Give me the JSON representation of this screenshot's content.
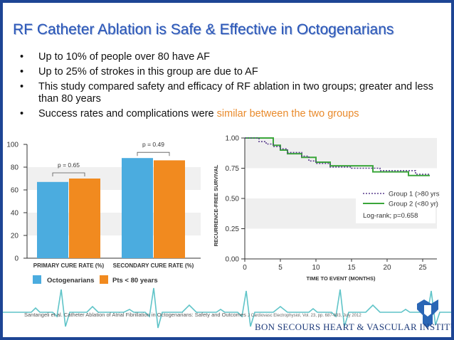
{
  "slide": {
    "title": "RF Catheter Ablation is Safe & Effective in Octogenarians",
    "bullets": [
      {
        "text": "Up to 10% of people over 80 have AF",
        "highlight": ""
      },
      {
        "text": "Up to 25% of strokes in this group are due to AF",
        "highlight": ""
      },
      {
        "text": "This study compared safety and efficacy of RF ablation in two groups; greater and less than 80 years",
        "highlight": ""
      },
      {
        "text": "Success rates and complications were ",
        "highlight": "similar between the two groups"
      }
    ],
    "citation": "Santangeli et al.  Catheter Ablation of Atrial Fibrillation in Octogenarians: Safety and Outcomes",
    "journal": "J Cardiovasc Electrophysiol, Vol. 23, pp. 687-693, July 2012",
    "brand": "BON SECOURS HEART & VASCULAR INSTITUTE",
    "colors": {
      "blue": "#4bacdf",
      "orange": "#f18a1f",
      "green": "#3aa63a",
      "purple": "#5a3e8e",
      "title": "#2a56b8"
    }
  },
  "chart_data": [
    {
      "type": "bar",
      "categories": [
        "PRIMARY CURE RATE (%)",
        "SECONDARY CURE RATE (%)"
      ],
      "series": [
        {
          "name": "Octogenarians",
          "values": [
            67,
            88
          ]
        },
        {
          "name": "Pts < 80 years",
          "values": [
            70,
            86
          ]
        }
      ],
      "ylim": [
        0,
        100
      ],
      "yticks": [
        "0",
        "20",
        "40",
        "60",
        "80",
        "100"
      ],
      "annotations": [
        "p = 0.65",
        "p = 0.49"
      ]
    },
    {
      "type": "line",
      "xlabel": "TIME TO EVENT (MONTHS)",
      "ylabel": "RECURRENCE-FREE SURVIVAL",
      "xlim": [
        0,
        27
      ],
      "ylim": [
        0,
        1
      ],
      "xticks": [
        "0",
        "5",
        "10",
        "15",
        "20",
        "25"
      ],
      "yticks": [
        "0.00",
        "0.25",
        "0.50",
        "0.75",
        "1.00"
      ],
      "series": [
        {
          "name": "Group 1 (>80 yrs)",
          "x": [
            0,
            2,
            2,
            3,
            3,
            4,
            4,
            5,
            5,
            6,
            6,
            8,
            8,
            9,
            9,
            10,
            10,
            12,
            12,
            15,
            15,
            19,
            19,
            24,
            24,
            26
          ],
          "y": [
            1.0,
            1.0,
            0.97,
            0.97,
            0.95,
            0.95,
            0.93,
            0.93,
            0.91,
            0.91,
            0.88,
            0.88,
            0.85,
            0.85,
            0.81,
            0.81,
            0.79,
            0.79,
            0.76,
            0.76,
            0.75,
            0.75,
            0.73,
            0.73,
            0.7,
            0.7
          ]
        },
        {
          "name": "Group 2 (<80 yr)",
          "x": [
            0,
            4,
            4,
            5,
            5,
            6,
            6,
            8,
            8,
            10,
            10,
            12,
            12,
            18,
            18,
            23,
            23,
            26
          ],
          "y": [
            1.0,
            1.0,
            0.94,
            0.94,
            0.9,
            0.9,
            0.87,
            0.87,
            0.84,
            0.84,
            0.8,
            0.8,
            0.77,
            0.77,
            0.72,
            0.72,
            0.69,
            0.69
          ]
        }
      ],
      "legend_note": "Log-rank; p=0.658"
    }
  ]
}
